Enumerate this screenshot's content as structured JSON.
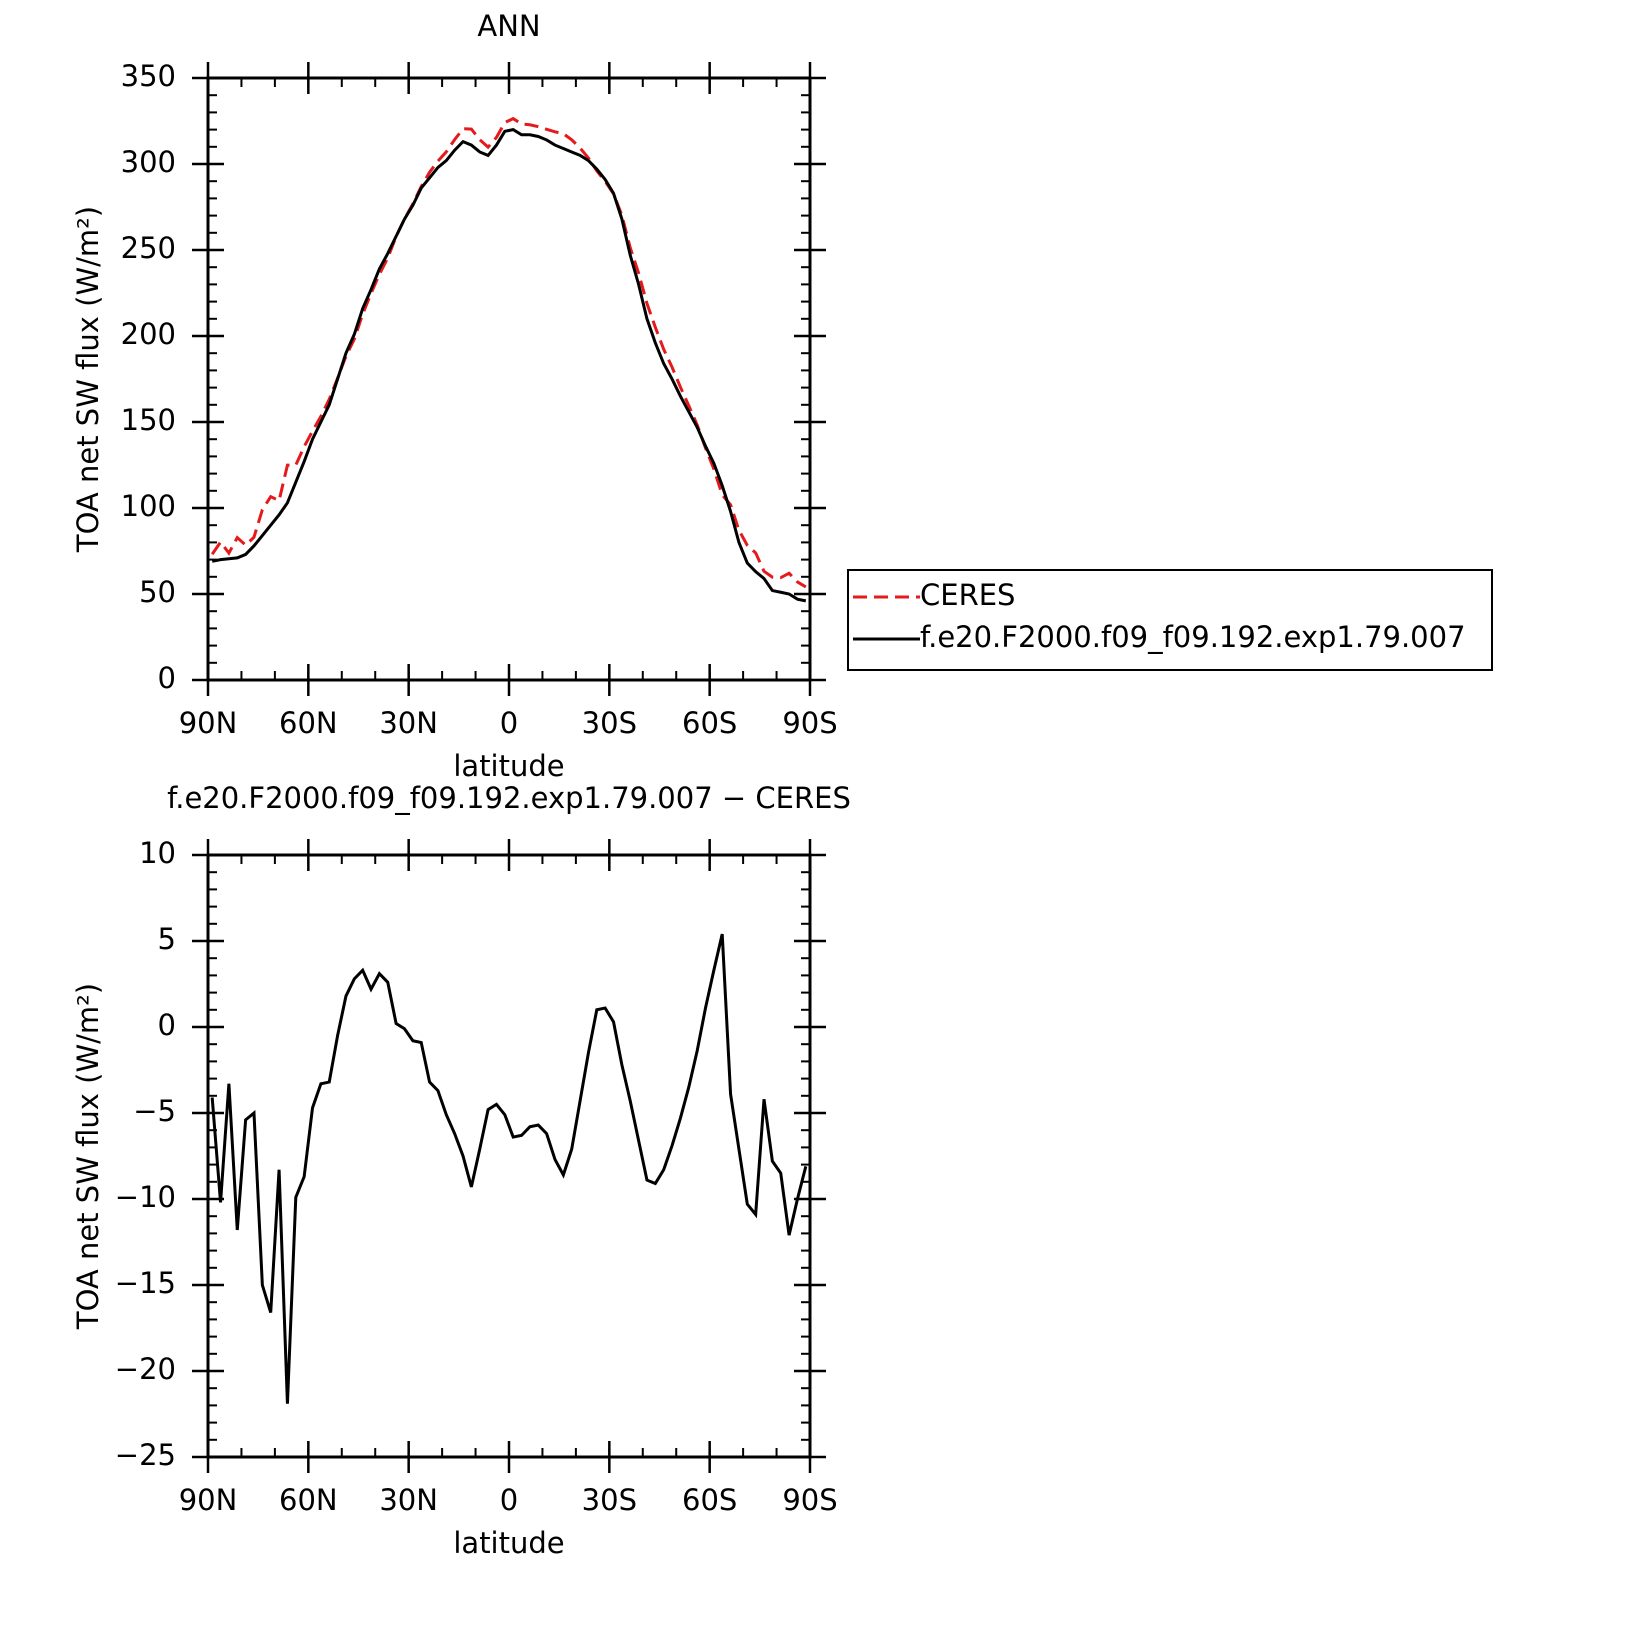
{
  "chart_data": [
    {
      "type": "line",
      "title": "ANN",
      "xlabel": "latitude",
      "ylabel": "TOA net SW flux (W/m²)",
      "x": [
        88.75,
        86.25,
        83.75,
        81.25,
        78.75,
        76.25,
        73.75,
        71.25,
        68.75,
        66.25,
        63.75,
        61.25,
        58.75,
        56.25,
        53.75,
        51.25,
        48.75,
        46.25,
        43.75,
        41.25,
        38.75,
        36.25,
        33.75,
        31.25,
        28.75,
        26.25,
        23.75,
        21.25,
        18.75,
        16.25,
        13.75,
        11.25,
        8.75,
        6.25,
        3.75,
        1.25,
        -1.25,
        -3.75,
        -6.25,
        -8.75,
        -11.25,
        -13.75,
        -16.25,
        -18.75,
        -21.25,
        -23.75,
        -26.25,
        -28.75,
        -31.25,
        -33.75,
        -36.25,
        -38.75,
        -41.25,
        -43.75,
        -46.25,
        -48.75,
        -51.25,
        -53.75,
        -56.25,
        -58.75,
        -61.25,
        -63.75,
        -66.25,
        -68.75,
        -71.25,
        -73.75,
        -76.25,
        -78.75,
        -81.25,
        -83.75,
        -86.25,
        -88.75
      ],
      "series": [
        {
          "name": "CERES",
          "color": "#e41a1c",
          "style": "dashed",
          "values": [
            73.1,
            80.2,
            73.8,
            82.8,
            78.4,
            83.0,
            99.0,
            106.6,
            104.3,
            124.9,
            124.9,
            135.7,
            144.7,
            153.3,
            163.2,
            175.5,
            188.2,
            198.2,
            212.7,
            224.8,
            235.9,
            245.4,
            257.8,
            268.1,
            276.8,
            286.9,
            295.2,
            301.7,
            307.1,
            314.2,
            320.5,
            320.3,
            314.1,
            309.8,
            315.5,
            324.1,
            326.4,
            323.3,
            322.8,
            321.7,
            320.2,
            318.7,
            317.6,
            314.1,
            309.3,
            303.5,
            296.0,
            289.9,
            282.7,
            270.2,
            251.3,
            236.6,
            218.9,
            205.1,
            192.3,
            181.9,
            170.3,
            159.5,
            148.4,
            134.9,
            122.7,
            107.6,
            101.9,
            87.1,
            78.3,
            73.9,
            63.2,
            59.8,
            59.5,
            62.1,
            57.0,
            54.1
          ]
        },
        {
          "name": "f.e20.F2000.f09_f09.192.exp1.79.007",
          "color": "#000000",
          "style": "solid",
          "values": [
            69,
            70,
            70.5,
            71,
            73,
            78,
            84,
            90,
            96,
            103,
            115,
            127,
            140,
            150,
            160,
            175,
            190,
            201,
            216,
            227,
            239,
            248,
            258,
            268,
            276,
            286,
            292,
            298,
            302,
            308,
            313,
            311,
            307,
            305,
            311,
            319,
            320,
            317,
            317,
            316,
            314,
            311,
            309,
            307,
            305,
            302,
            297,
            291,
            283,
            268,
            247,
            230,
            210,
            196,
            184,
            175,
            165,
            156,
            147,
            136,
            126,
            113,
            98,
            80,
            68,
            63,
            59,
            52,
            51,
            50,
            47,
            46
          ]
        }
      ],
      "xlim": [
        90,
        -90
      ],
      "xticks": [
        {
          "value": 90,
          "label": "90N"
        },
        {
          "value": 60,
          "label": "60N"
        },
        {
          "value": 30,
          "label": "30N"
        },
        0,
        {
          "value": -30,
          "label": "30S"
        },
        {
          "value": -60,
          "label": "60S"
        },
        {
          "value": -90,
          "label": "90S"
        }
      ],
      "ylim": [
        0,
        350
      ],
      "yticks": [
        0,
        50,
        100,
        150,
        200,
        250,
        300,
        350
      ],
      "legend": "right"
    },
    {
      "type": "line",
      "title": "f.e20.F2000.f09_f09.192.exp1.79.007 − CERES",
      "xlabel": "latitude",
      "ylabel": "TOA net SW flux (W/m²)",
      "x": [
        88.75,
        86.25,
        83.75,
        81.25,
        78.75,
        76.25,
        73.75,
        71.25,
        68.75,
        66.25,
        63.75,
        61.25,
        58.75,
        56.25,
        53.75,
        51.25,
        48.75,
        46.25,
        43.75,
        41.25,
        38.75,
        36.25,
        33.75,
        31.25,
        28.75,
        26.25,
        23.75,
        21.25,
        18.75,
        16.25,
        13.75,
        11.25,
        8.75,
        6.25,
        3.75,
        1.25,
        -1.25,
        -3.75,
        -6.25,
        -8.75,
        -11.25,
        -13.75,
        -16.25,
        -18.75,
        -21.25,
        -23.75,
        -26.25,
        -28.75,
        -31.25,
        -33.75,
        -36.25,
        -38.75,
        -41.25,
        -43.75,
        -46.25,
        -48.75,
        -51.25,
        -53.75,
        -56.25,
        -58.75,
        -61.25,
        -63.75,
        -66.25,
        -68.75,
        -71.25,
        -73.75,
        -76.25,
        -78.75,
        -81.25,
        -83.75,
        -86.25,
        -88.75
      ],
      "series": [
        {
          "color": "#000000",
          "style": "solid",
          "values": [
            -4.1,
            -10.2,
            -3.3,
            -11.8,
            -5.4,
            -5.0,
            -15.0,
            -16.6,
            -8.3,
            -21.9,
            -9.9,
            -8.7,
            -4.7,
            -3.3,
            -3.2,
            -0.5,
            1.8,
            2.8,
            3.3,
            2.2,
            3.1,
            2.6,
            0.2,
            -0.1,
            -0.8,
            -0.9,
            -3.2,
            -3.7,
            -5.1,
            -6.2,
            -7.5,
            -9.3,
            -7.1,
            -4.8,
            -4.5,
            -5.1,
            -6.4,
            -6.3,
            -5.8,
            -5.7,
            -6.2,
            -7.7,
            -8.6,
            -7.1,
            -4.3,
            -1.5,
            1.0,
            1.1,
            0.3,
            -2.2,
            -4.3,
            -6.6,
            -8.9,
            -9.1,
            -8.3,
            -6.9,
            -5.3,
            -3.5,
            -1.4,
            1.1,
            3.3,
            5.4,
            -3.9,
            -7.1,
            -10.3,
            -10.9,
            -4.2,
            -7.8,
            -8.5,
            -12.1,
            -10.0,
            -8.1
          ]
        }
      ],
      "xlim": [
        90,
        -90
      ],
      "xticks": [
        {
          "value": 90,
          "label": "90N"
        },
        {
          "value": 60,
          "label": "60N"
        },
        {
          "value": 30,
          "label": "30N"
        },
        0,
        {
          "value": -30,
          "label": "30S"
        },
        {
          "value": -60,
          "label": "60S"
        },
        {
          "value": -90,
          "label": "90S"
        }
      ],
      "ylim": [
        -25,
        10
      ],
      "yticks": [
        {
          "value": -25,
          "label": "−25"
        },
        {
          "value": -20,
          "label": "−20"
        },
        {
          "value": -15,
          "label": "−15"
        },
        {
          "value": -10,
          "label": "−10"
        },
        {
          "value": -5,
          "label": "−5"
        },
        0,
        5,
        10
      ]
    }
  ]
}
